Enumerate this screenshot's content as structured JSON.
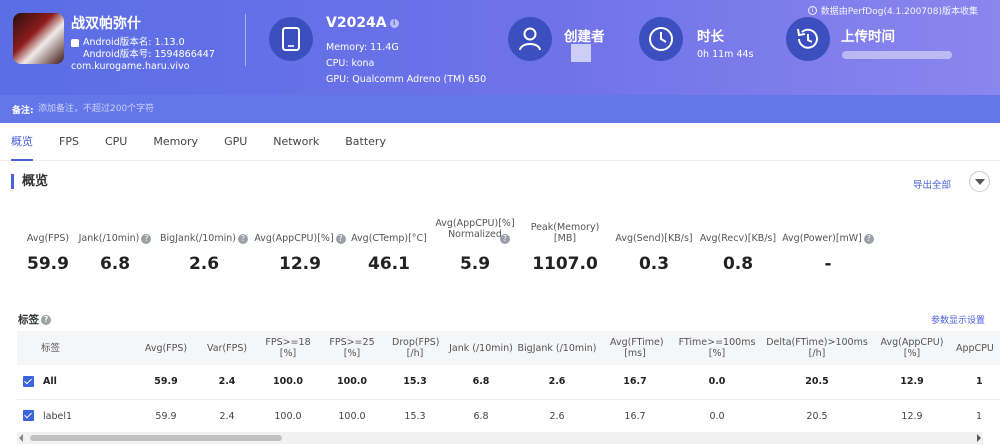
{
  "app": {
    "name": "战双帕弥什",
    "version_name": "Android版本名: 1.13.0",
    "version_code": "Android版本号: 1594866447",
    "package": "com.kurogame.haru.vivo"
  },
  "device": {
    "name": "V2024A",
    "memory": "Memory: 11.4G",
    "cpu": "CPU: kona",
    "gpu": "GPU: Qualcomm Adreno (TM) 650"
  },
  "creator": {
    "label": "创建者"
  },
  "duration": {
    "label": "时长",
    "value": "0h 11m 44s"
  },
  "upload": {
    "label": "上传时间"
  },
  "source_note": "数据由PerfDog(4.1.200708)版本收集",
  "remark": {
    "label": "备注:",
    "placeholder": "添加备注，不超过200个字符"
  },
  "tabs": [
    "概览",
    "FPS",
    "CPU",
    "Memory",
    "GPU",
    "Network",
    "Battery"
  ],
  "overview": {
    "title": "概览",
    "export_label": "导出全部",
    "metrics": [
      {
        "label": "Avg(FPS)",
        "value": "59.9"
      },
      {
        "label": "Jank(/10min)",
        "value": "6.8"
      },
      {
        "label": "BigJank(/10min)",
        "value": "2.6"
      },
      {
        "label": "Avg(AppCPU)[%]",
        "value": "12.9"
      },
      {
        "label": "Avg(CTemp)[°C]",
        "value": "46.1"
      },
      {
        "label": "Avg(AppCPU)[%] Normalized",
        "value": "5.9"
      },
      {
        "label": "Peak(Memory)[MB]",
        "value": "1107.0"
      },
      {
        "label": "Avg(Send)[KB/s]",
        "value": "0.3"
      },
      {
        "label": "Avg(Recv)[KB/s]",
        "value": "0.8"
      },
      {
        "label": "Avg(Power)[mW]",
        "value": "-"
      }
    ]
  },
  "tags": {
    "title": "标签",
    "settings_label": "参数显示设置",
    "columns": [
      "标签",
      "Avg(FPS)",
      "Var(FPS)",
      "FPS>=18 [%]",
      "FPS>=25 [%]",
      "Drop(FPS) [/h]",
      "Jank (/10min)",
      "BigJank (/10min)",
      "Avg(FTime) [ms]",
      "FTime>=100ms [%]",
      "Delta(FTime)>100ms [/h]",
      "Avg(AppCPU) [%]",
      "AppCPU"
    ],
    "rows": [
      {
        "label": "All",
        "cells": [
          "59.9",
          "2.4",
          "100.0",
          "100.0",
          "15.3",
          "6.8",
          "2.6",
          "16.7",
          "0.0",
          "20.5",
          "12.9",
          "1"
        ]
      },
      {
        "label": "label1",
        "cells": [
          "59.9",
          "2.4",
          "100.0",
          "100.0",
          "15.3",
          "6.8",
          "2.6",
          "16.7",
          "0.0",
          "20.5",
          "12.9",
          "1"
        ]
      }
    ]
  }
}
